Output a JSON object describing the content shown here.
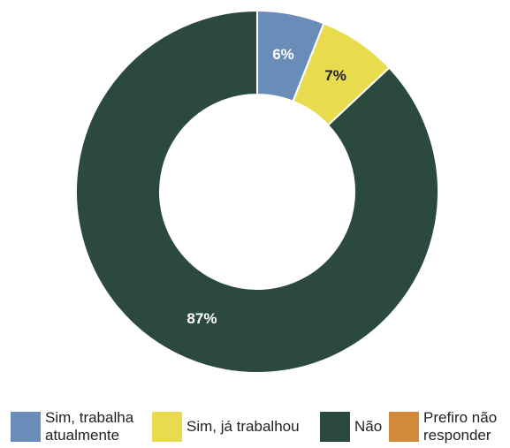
{
  "chart_data": {
    "type": "donut",
    "categories": [
      "Sim, trabalha atualmente",
      "Sim, já trabalhou",
      "Não",
      "Prefiro não responder"
    ],
    "values": [
      6,
      7,
      87,
      0
    ],
    "value_labels": [
      "6%",
      "7%",
      "87%",
      null
    ],
    "colors": [
      "#6a8cb8",
      "#e8dc4e",
      "#2b4a3d",
      "#d08a3a"
    ]
  }
}
